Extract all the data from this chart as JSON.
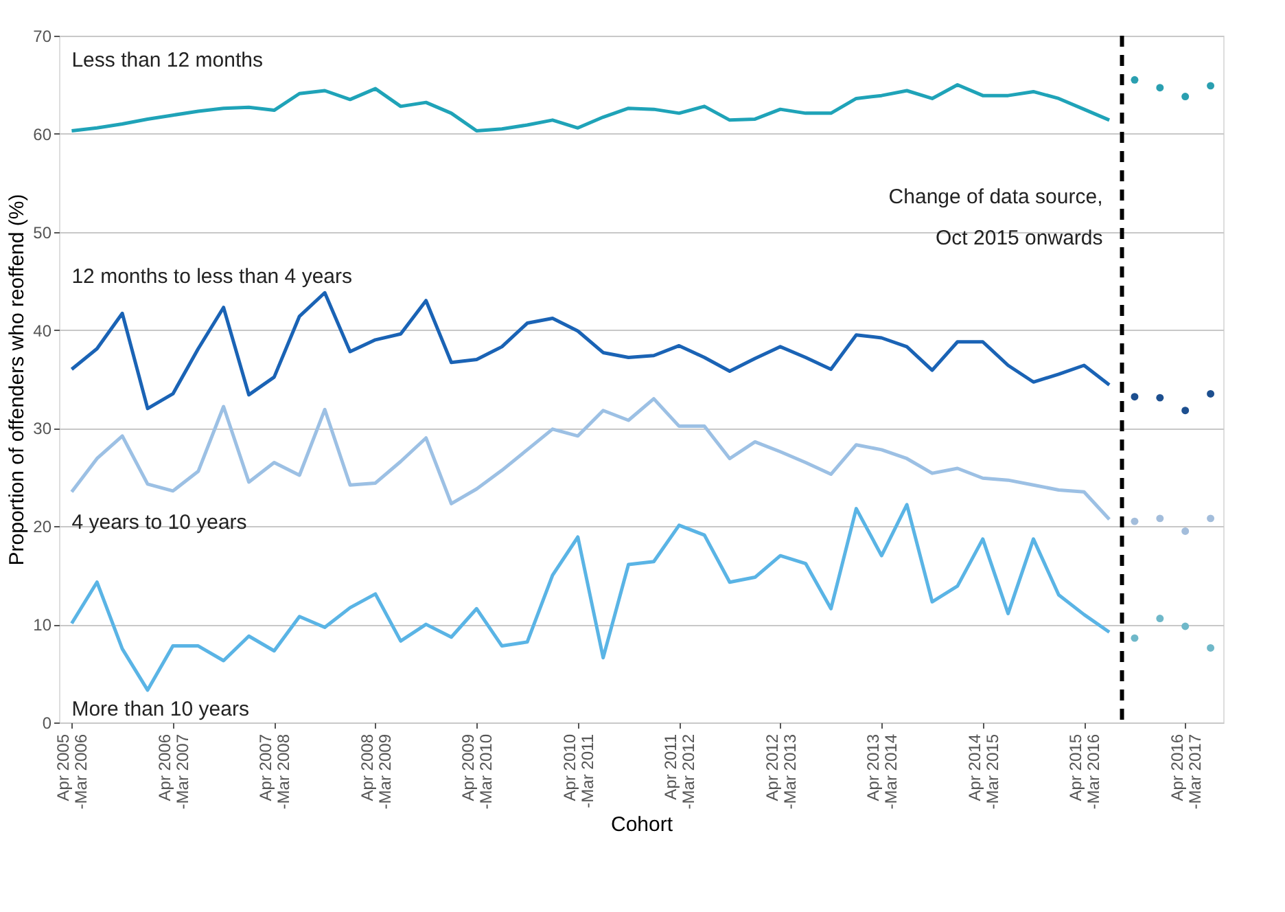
{
  "chart_data": {
    "type": "line",
    "xlabel": "Cohort",
    "ylabel": "Proportion of offenders who reoffend (%)",
    "categories": [
      "Apr 2005\n-Mar 2006",
      null,
      null,
      null,
      "Apr 2006\n-Mar 2007",
      null,
      null,
      null,
      "Apr 2007\n-Mar 2008",
      null,
      null,
      null,
      "Apr 2008\n-Mar 2009",
      null,
      null,
      null,
      "Apr 2009\n-Mar 2010",
      null,
      null,
      null,
      "Apr 2010\n-Mar 2011",
      null,
      null,
      null,
      "Apr 2011\n-Mar 2012",
      null,
      null,
      null,
      "Apr 2012\n-Mar 2013",
      null,
      null,
      null,
      "Apr 2013\n-Mar 2014",
      null,
      null,
      null,
      "Apr 2014\n-Mar 2015",
      null,
      null,
      null,
      "Apr 2015\n-Mar 2016",
      null,
      null,
      null,
      "Apr 2016\n-Mar 2017",
      null
    ],
    "ylim": [
      0,
      70
    ],
    "yticks": [
      0,
      10,
      20,
      30,
      40,
      50,
      60,
      70
    ],
    "grid": "y",
    "line_style": "solid",
    "series": [
      {
        "name": "Less than 12 months",
        "color": "#1fa3b8",
        "values": [
          60.3,
          60.6,
          61.0,
          61.5,
          61.9,
          62.3,
          62.6,
          62.7,
          62.4,
          64.1,
          64.4,
          63.5,
          64.6,
          62.8,
          63.2,
          62.1,
          60.3,
          60.5,
          60.9,
          61.4,
          60.6,
          61.7,
          62.6,
          62.5,
          62.1,
          62.8,
          61.4,
          61.5,
          62.5,
          62.1,
          62.1,
          63.6,
          63.9,
          64.4,
          63.6,
          65.0,
          63.9,
          63.9,
          64.3,
          63.6,
          62.5,
          61.4,
          null,
          null,
          null,
          null
        ]
      },
      {
        "name": "12 months to less than 4 years",
        "color": "#1a63b5",
        "values": [
          36.0,
          38.1,
          41.7,
          32.0,
          33.5,
          38.1,
          42.3,
          33.4,
          35.2,
          41.4,
          43.8,
          37.8,
          39.0,
          39.6,
          43.0,
          36.7,
          37.0,
          38.3,
          40.7,
          41.2,
          39.9,
          37.7,
          37.2,
          37.4,
          38.4,
          37.2,
          35.8,
          37.1,
          38.3,
          37.2,
          36.0,
          39.5,
          39.2,
          38.3,
          35.9,
          38.8,
          38.8,
          36.4,
          34.7,
          35.5,
          36.4,
          34.4,
          null,
          null,
          null,
          null
        ]
      },
      {
        "name": "4 years to 10 years",
        "color": "#9cc0e4",
        "values": [
          23.5,
          26.9,
          29.2,
          24.3,
          23.6,
          25.6,
          32.2,
          24.5,
          26.5,
          25.2,
          31.9,
          24.2,
          24.4,
          26.6,
          29.0,
          22.3,
          23.8,
          25.7,
          27.8,
          29.9,
          29.2,
          31.8,
          30.8,
          33.0,
          30.2,
          30.2,
          26.9,
          28.6,
          27.6,
          26.5,
          25.3,
          28.3,
          27.8,
          26.9,
          25.4,
          25.9,
          24.9,
          24.7,
          24.2,
          23.7,
          23.5,
          20.7,
          null,
          null,
          null,
          null
        ]
      },
      {
        "name": "More than 10 years",
        "color": "#5ab4e5",
        "values": [
          10.1,
          14.3,
          7.5,
          3.3,
          7.8,
          7.8,
          6.3,
          8.8,
          7.3,
          10.8,
          9.7,
          11.7,
          13.1,
          8.3,
          10.0,
          8.7,
          11.6,
          7.8,
          8.2,
          15.0,
          18.9,
          6.6,
          16.1,
          16.4,
          20.1,
          19.1,
          14.3,
          14.8,
          17.0,
          16.2,
          11.6,
          21.8,
          17.0,
          22.2,
          12.3,
          13.9,
          18.7,
          11.1,
          18.7,
          13.0,
          11.0,
          9.2,
          null,
          null,
          null,
          null
        ]
      },
      {
        "type": "scatter",
        "marker": "circle",
        "color": "#2a9fb0",
        "values": [
          null,
          null,
          null,
          null,
          null,
          null,
          null,
          null,
          null,
          null,
          null,
          null,
          null,
          null,
          null,
          null,
          null,
          null,
          null,
          null,
          null,
          null,
          null,
          null,
          null,
          null,
          null,
          null,
          null,
          null,
          null,
          null,
          null,
          null,
          null,
          null,
          null,
          null,
          null,
          null,
          null,
          null,
          65.5,
          64.7,
          63.8,
          64.9
        ]
      },
      {
        "type": "scatter",
        "marker": "circle",
        "color": "#1d4f8f",
        "values": [
          null,
          null,
          null,
          null,
          null,
          null,
          null,
          null,
          null,
          null,
          null,
          null,
          null,
          null,
          null,
          null,
          null,
          null,
          null,
          null,
          null,
          null,
          null,
          null,
          null,
          null,
          null,
          null,
          null,
          null,
          null,
          null,
          null,
          null,
          null,
          null,
          null,
          null,
          null,
          null,
          null,
          null,
          33.2,
          33.1,
          31.8,
          33.5
        ]
      },
      {
        "type": "scatter",
        "marker": "circle",
        "color": "#a3bddb",
        "values": [
          null,
          null,
          null,
          null,
          null,
          null,
          null,
          null,
          null,
          null,
          null,
          null,
          null,
          null,
          null,
          null,
          null,
          null,
          null,
          null,
          null,
          null,
          null,
          null,
          null,
          null,
          null,
          null,
          null,
          null,
          null,
          null,
          null,
          null,
          null,
          null,
          null,
          null,
          null,
          null,
          null,
          null,
          20.5,
          20.8,
          19.5,
          20.8
        ]
      },
      {
        "type": "scatter",
        "marker": "circle",
        "color": "#6fb8c9",
        "values": [
          null,
          null,
          null,
          null,
          null,
          null,
          null,
          null,
          null,
          null,
          null,
          null,
          null,
          null,
          null,
          null,
          null,
          null,
          null,
          null,
          null,
          null,
          null,
          null,
          null,
          null,
          null,
          null,
          null,
          null,
          null,
          null,
          null,
          null,
          null,
          null,
          null,
          null,
          null,
          null,
          null,
          null,
          8.6,
          10.6,
          9.8,
          7.6
        ]
      }
    ],
    "annotations": [
      "Change of data source,\nOct 2015 onwards"
    ]
  }
}
